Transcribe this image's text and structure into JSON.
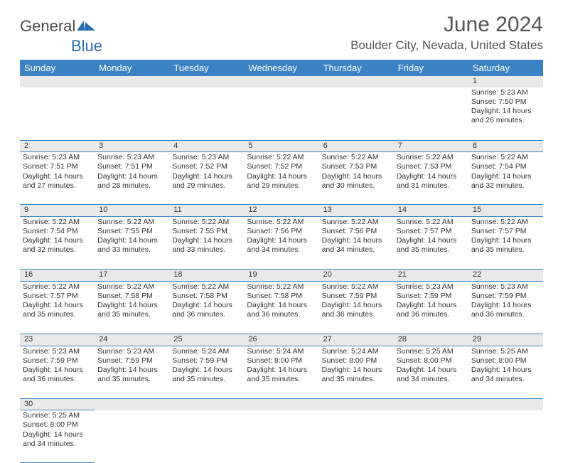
{
  "logo": {
    "text1": "General",
    "text2": "Blue",
    "mark_color": "#2a6fb5"
  },
  "title": "June 2024",
  "location": "Boulder City, Nevada, United States",
  "colors": {
    "header_bg": "#3b82c4",
    "header_text": "#ffffff",
    "daynum_bg": "#e9e9e9",
    "border": "#3b82c4",
    "body_text": "#333333",
    "title_text": "#555555"
  },
  "day_headers": [
    "Sunday",
    "Monday",
    "Tuesday",
    "Wednesday",
    "Thursday",
    "Friday",
    "Saturday"
  ],
  "weeks": [
    [
      null,
      null,
      null,
      null,
      null,
      null,
      {
        "n": "1",
        "sr": "5:23 AM",
        "ss": "7:50 PM",
        "dl": "14 hours and 26 minutes."
      }
    ],
    [
      {
        "n": "2",
        "sr": "5:23 AM",
        "ss": "7:51 PM",
        "dl": "14 hours and 27 minutes."
      },
      {
        "n": "3",
        "sr": "5:23 AM",
        "ss": "7:51 PM",
        "dl": "14 hours and 28 minutes."
      },
      {
        "n": "4",
        "sr": "5:23 AM",
        "ss": "7:52 PM",
        "dl": "14 hours and 29 minutes."
      },
      {
        "n": "5",
        "sr": "5:22 AM",
        "ss": "7:52 PM",
        "dl": "14 hours and 29 minutes."
      },
      {
        "n": "6",
        "sr": "5:22 AM",
        "ss": "7:53 PM",
        "dl": "14 hours and 30 minutes."
      },
      {
        "n": "7",
        "sr": "5:22 AM",
        "ss": "7:53 PM",
        "dl": "14 hours and 31 minutes."
      },
      {
        "n": "8",
        "sr": "5:22 AM",
        "ss": "7:54 PM",
        "dl": "14 hours and 32 minutes."
      }
    ],
    [
      {
        "n": "9",
        "sr": "5:22 AM",
        "ss": "7:54 PM",
        "dl": "14 hours and 32 minutes."
      },
      {
        "n": "10",
        "sr": "5:22 AM",
        "ss": "7:55 PM",
        "dl": "14 hours and 33 minutes."
      },
      {
        "n": "11",
        "sr": "5:22 AM",
        "ss": "7:55 PM",
        "dl": "14 hours and 33 minutes."
      },
      {
        "n": "12",
        "sr": "5:22 AM",
        "ss": "7:56 PM",
        "dl": "14 hours and 34 minutes."
      },
      {
        "n": "13",
        "sr": "5:22 AM",
        "ss": "7:56 PM",
        "dl": "14 hours and 34 minutes."
      },
      {
        "n": "14",
        "sr": "5:22 AM",
        "ss": "7:57 PM",
        "dl": "14 hours and 35 minutes."
      },
      {
        "n": "15",
        "sr": "5:22 AM",
        "ss": "7:57 PM",
        "dl": "14 hours and 35 minutes."
      }
    ],
    [
      {
        "n": "16",
        "sr": "5:22 AM",
        "ss": "7:57 PM",
        "dl": "14 hours and 35 minutes."
      },
      {
        "n": "17",
        "sr": "5:22 AM",
        "ss": "7:58 PM",
        "dl": "14 hours and 35 minutes."
      },
      {
        "n": "18",
        "sr": "5:22 AM",
        "ss": "7:58 PM",
        "dl": "14 hours and 36 minutes."
      },
      {
        "n": "19",
        "sr": "5:22 AM",
        "ss": "7:58 PM",
        "dl": "14 hours and 36 minutes."
      },
      {
        "n": "20",
        "sr": "5:22 AM",
        "ss": "7:59 PM",
        "dl": "14 hours and 36 minutes."
      },
      {
        "n": "21",
        "sr": "5:23 AM",
        "ss": "7:59 PM",
        "dl": "14 hours and 36 minutes."
      },
      {
        "n": "22",
        "sr": "5:23 AM",
        "ss": "7:59 PM",
        "dl": "14 hours and 36 minutes."
      }
    ],
    [
      {
        "n": "23",
        "sr": "5:23 AM",
        "ss": "7:59 PM",
        "dl": "14 hours and 36 minutes."
      },
      {
        "n": "24",
        "sr": "5:23 AM",
        "ss": "7:59 PM",
        "dl": "14 hours and 35 minutes."
      },
      {
        "n": "25",
        "sr": "5:24 AM",
        "ss": "7:59 PM",
        "dl": "14 hours and 35 minutes."
      },
      {
        "n": "26",
        "sr": "5:24 AM",
        "ss": "8:00 PM",
        "dl": "14 hours and 35 minutes."
      },
      {
        "n": "27",
        "sr": "5:24 AM",
        "ss": "8:00 PM",
        "dl": "14 hours and 35 minutes."
      },
      {
        "n": "28",
        "sr": "5:25 AM",
        "ss": "8:00 PM",
        "dl": "14 hours and 34 minutes."
      },
      {
        "n": "29",
        "sr": "5:25 AM",
        "ss": "8:00 PM",
        "dl": "14 hours and 34 minutes."
      }
    ],
    [
      {
        "n": "30",
        "sr": "5:25 AM",
        "ss": "8:00 PM",
        "dl": "14 hours and 34 minutes."
      },
      null,
      null,
      null,
      null,
      null,
      null
    ]
  ],
  "labels": {
    "sunrise": "Sunrise:",
    "sunset": "Sunset:",
    "daylight": "Daylight:"
  }
}
